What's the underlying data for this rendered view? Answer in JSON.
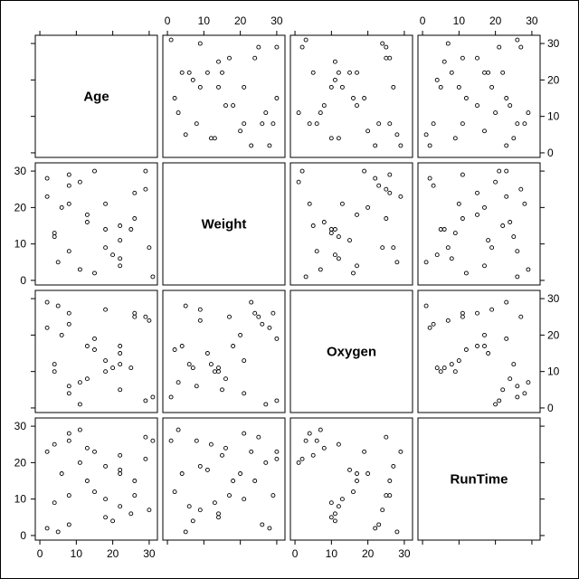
{
  "chart_data": {
    "type": "scatter",
    "title": "",
    "variables": [
      "Age",
      "Weight",
      "Oxygen",
      "RunTime"
    ],
    "ticks": [
      "0",
      "10",
      "20",
      "30"
    ],
    "axis_range": [
      -2,
      33
    ],
    "observations": [
      {
        "Age": 2,
        "Weight": 28,
        "Oxygen": 22,
        "RunTime": 2
      },
      {
        "Age": 2,
        "Weight": 23,
        "Oxygen": 29,
        "RunTime": 23
      },
      {
        "Age": 4,
        "Weight": 13,
        "Oxygen": 10,
        "RunTime": 9
      },
      {
        "Age": 4,
        "Weight": 12,
        "Oxygen": 12,
        "RunTime": 25
      },
      {
        "Age": 5,
        "Weight": 5,
        "Oxygen": 28,
        "RunTime": 1
      },
      {
        "Age": 6,
        "Weight": 20,
        "Oxygen": 20,
        "RunTime": 17
      },
      {
        "Age": 8,
        "Weight": 29,
        "Oxygen": 26,
        "RunTime": 11
      },
      {
        "Age": 8,
        "Weight": 26,
        "Oxygen": 23,
        "RunTime": 3
      },
      {
        "Age": 8,
        "Weight": 21,
        "Oxygen": 4,
        "RunTime": 28
      },
      {
        "Age": 8,
        "Weight": 8,
        "Oxygen": 6,
        "RunTime": 26
      },
      {
        "Age": 11,
        "Weight": 27,
        "Oxygen": 1,
        "RunTime": 20
      },
      {
        "Age": 11,
        "Weight": 3,
        "Oxygen": 7,
        "RunTime": 29
      },
      {
        "Age": 13,
        "Weight": 18,
        "Oxygen": 17,
        "RunTime": 15
      },
      {
        "Age": 13,
        "Weight": 16,
        "Oxygen": 8,
        "RunTime": 24
      },
      {
        "Age": 15,
        "Weight": 30,
        "Oxygen": 19,
        "RunTime": 23
      },
      {
        "Age": 15,
        "Weight": 2,
        "Oxygen": 16,
        "RunTime": 12
      },
      {
        "Age": 18,
        "Weight": 21,
        "Oxygen": 13,
        "RunTime": 10
      },
      {
        "Age": 18,
        "Weight": 14,
        "Oxygen": 10,
        "RunTime": 5
      },
      {
        "Age": 18,
        "Weight": 9,
        "Oxygen": 27,
        "RunTime": 19
      },
      {
        "Age": 20,
        "Weight": 7,
        "Oxygen": 11,
        "RunTime": 4
      },
      {
        "Age": 22,
        "Weight": 15,
        "Oxygen": 5,
        "RunTime": 22
      },
      {
        "Age": 22,
        "Weight": 11,
        "Oxygen": 15,
        "RunTime": 18
      },
      {
        "Age": 22,
        "Weight": 6,
        "Oxygen": 12,
        "RunTime": 8
      },
      {
        "Age": 22,
        "Weight": 4,
        "Oxygen": 17,
        "RunTime": 17
      },
      {
        "Age": 25,
        "Weight": 14,
        "Oxygen": 11,
        "RunTime": 6
      },
      {
        "Age": 26,
        "Weight": 24,
        "Oxygen": 26,
        "RunTime": 15
      },
      {
        "Age": 26,
        "Weight": 17,
        "Oxygen": 25,
        "RunTime": 11
      },
      {
        "Age": 29,
        "Weight": 30,
        "Oxygen": 2,
        "RunTime": 21
      },
      {
        "Age": 29,
        "Weight": 25,
        "Oxygen": 25,
        "RunTime": 27
      },
      {
        "Age": 30,
        "Weight": 9,
        "Oxygen": 24,
        "RunTime": 7
      },
      {
        "Age": 31,
        "Weight": 1,
        "Oxygen": 3,
        "RunTime": 26
      }
    ]
  }
}
